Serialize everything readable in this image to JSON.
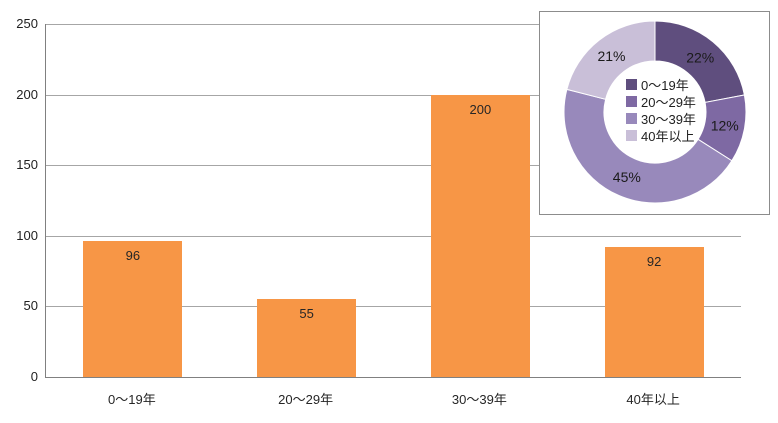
{
  "page": {
    "background": "#FFFFFF"
  },
  "chart_data": [
    {
      "type": "bar",
      "title": "",
      "xlabel": "",
      "ylabel": "",
      "categories": [
        "0〜19年",
        "20〜29年",
        "30〜39年",
        "40年以上"
      ],
      "values": [
        96,
        55,
        200,
        92
      ],
      "data_labels": [
        "96",
        "55",
        "200",
        "92"
      ],
      "ylim": [
        0,
        250
      ],
      "yticks": [
        0,
        50,
        100,
        150,
        200,
        250
      ],
      "grid": true,
      "legend_position": "none",
      "bar_color": "#F79646",
      "axis_color": "#808080",
      "grid_color": "#A6A6A6",
      "label_color": "#262626"
    },
    {
      "type": "pie",
      "subtype": "donut",
      "title": "",
      "categories": [
        "0〜19年",
        "20〜29年",
        "30〜39年",
        "40年以上"
      ],
      "values": [
        22,
        12,
        45,
        21
      ],
      "slice_labels": [
        "22%",
        "12%",
        "45%",
        "21%"
      ],
      "colors": [
        "#5F4E7E",
        "#7E69A3",
        "#9889BB",
        "#C9BFD8"
      ],
      "start_angle_deg": 0,
      "direction": "clockwise",
      "legend_position": "center",
      "legend_entries": [
        "0〜19年",
        "20〜29年",
        "30〜39年",
        "40年以上"
      ],
      "inset_border_color": "#8C8C8C",
      "inset_background": "#FFFFFF"
    }
  ]
}
